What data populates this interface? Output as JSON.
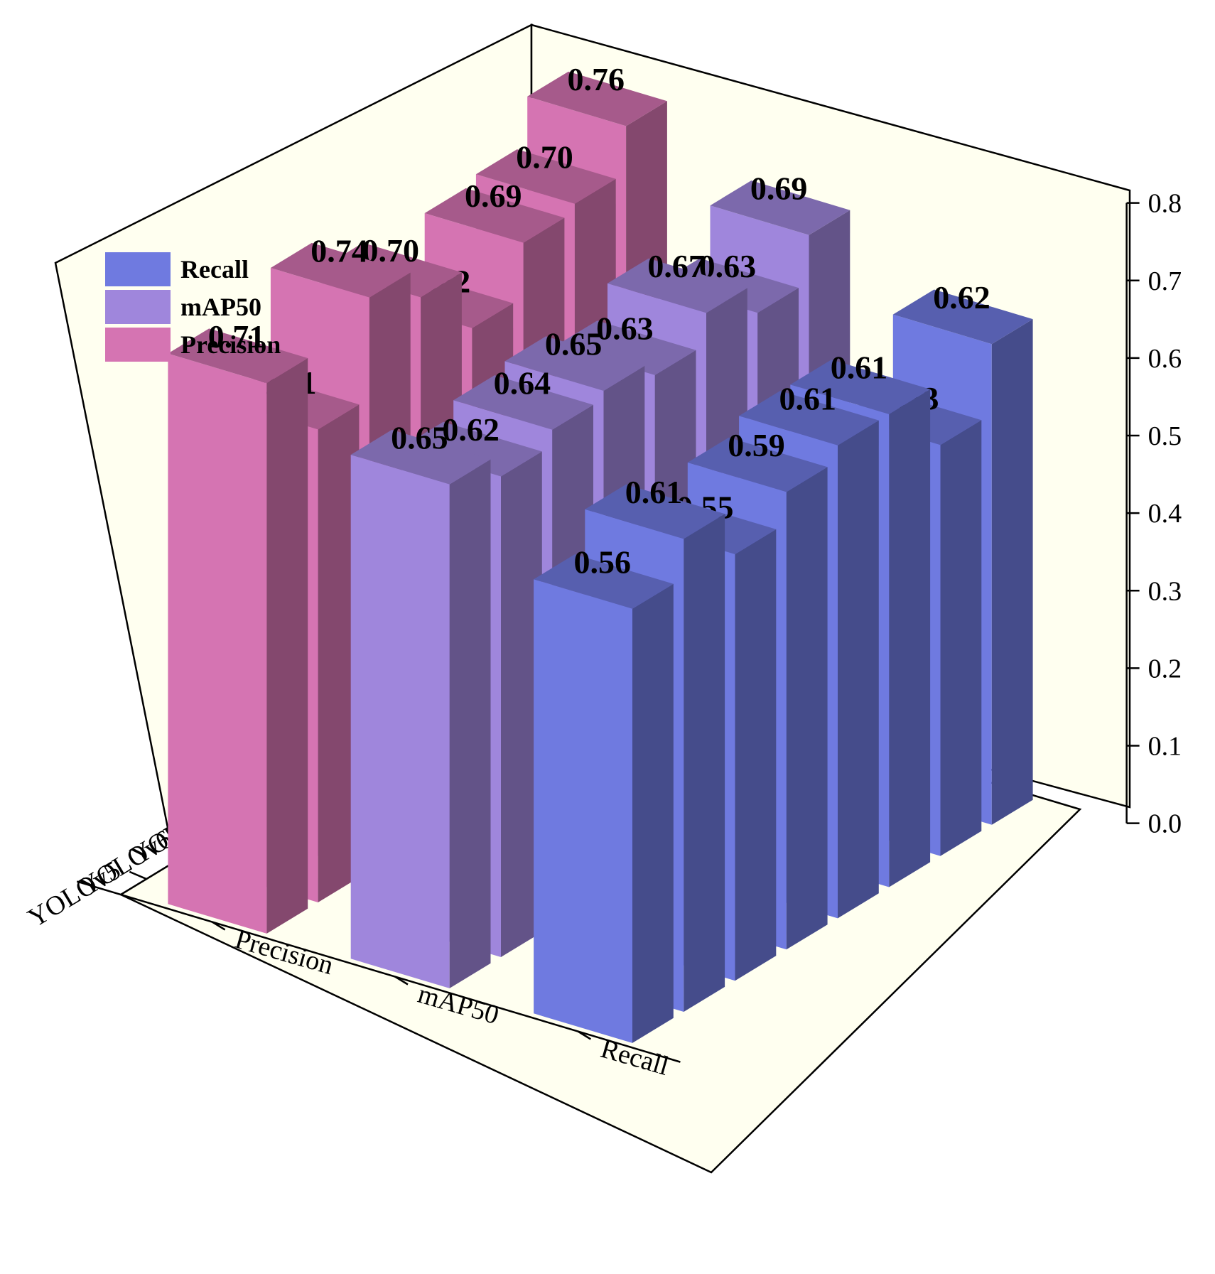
{
  "chart_data": {
    "type": "bar",
    "subtype": "3d-grouped-bar",
    "title": "",
    "categories": [
      "Our model",
      "YOLOv12",
      "YOLOv11",
      "YOLOv10",
      "YOLOv9",
      "YOLOv8",
      "YOLOv6",
      "YOLOv5"
    ],
    "series": [
      {
        "name": "Recall",
        "color": "#6f7ae0",
        "values": [
          0.62,
          0.53,
          0.61,
          0.61,
          0.59,
          0.55,
          0.61,
          0.56
        ]
      },
      {
        "name": "mAP50",
        "color": "#9f86dc",
        "values": [
          0.69,
          0.63,
          0.67,
          0.63,
          0.65,
          0.64,
          0.62,
          0.65
        ]
      },
      {
        "name": "Precision",
        "color": "#d574b2",
        "values": [
          0.76,
          0.7,
          0.69,
          0.62,
          0.7,
          0.74,
          0.61,
          0.71
        ]
      }
    ],
    "data_labels": [
      [
        "0.62",
        "0.53",
        "0.61",
        "0.61",
        "0.59",
        "0.55",
        "0.61",
        "0.56"
      ],
      [
        "0.69",
        "0.63",
        "0.67",
        "0.63",
        "0.65",
        "0.64",
        "0.62",
        "0.65"
      ],
      [
        "0.76",
        "0.70",
        "0.69",
        "0.62",
        "0.70",
        "0.74",
        "0.61",
        "0.71"
      ]
    ],
    "z_ticks": [
      "0.0",
      "0.1",
      "0.2",
      "0.3",
      "0.4",
      "0.5",
      "0.6",
      "0.7",
      "0.8"
    ],
    "zlim": [
      0,
      0.8
    ],
    "xlabel": "",
    "ylabel": "",
    "zlabel": "",
    "legend_position": "top-left",
    "background": "#fffff0"
  }
}
